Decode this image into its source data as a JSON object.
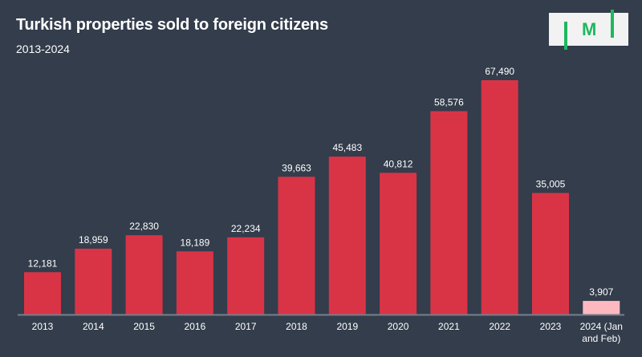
{
  "chart_data": {
    "type": "bar",
    "title": "Turkish properties sold to foreign citizens",
    "subtitle": "2013-2024",
    "xlabel": "",
    "ylabel": "",
    "categories": [
      "2013",
      "2014",
      "2015",
      "2016",
      "2017",
      "2018",
      "2019",
      "2020",
      "2021",
      "2022",
      "2023",
      "2024 (Jan and Feb)"
    ],
    "category_lines": [
      [
        "2013"
      ],
      [
        "2014"
      ],
      [
        "2015"
      ],
      [
        "2016"
      ],
      [
        "2017"
      ],
      [
        "2018"
      ],
      [
        "2019"
      ],
      [
        "2020"
      ],
      [
        "2021"
      ],
      [
        "2022"
      ],
      [
        "2023"
      ],
      [
        "2024 (Jan",
        "and Feb)"
      ]
    ],
    "values": [
      12181,
      18959,
      22830,
      18189,
      22234,
      39663,
      45483,
      40812,
      58576,
      67490,
      35005,
      3907
    ],
    "labels": [
      "12,181",
      "18,959",
      "22,830",
      "18,189",
      "22,234",
      "39,663",
      "45,483",
      "40,812",
      "58,576",
      "67,490",
      "35,005",
      "3,907"
    ],
    "ylim": [
      0,
      67490
    ],
    "grid": false,
    "colors": {
      "bar": "#d93446",
      "partial": "#ffb8c0",
      "axis": "#777f8c"
    }
  },
  "logo": {
    "text": "M"
  }
}
